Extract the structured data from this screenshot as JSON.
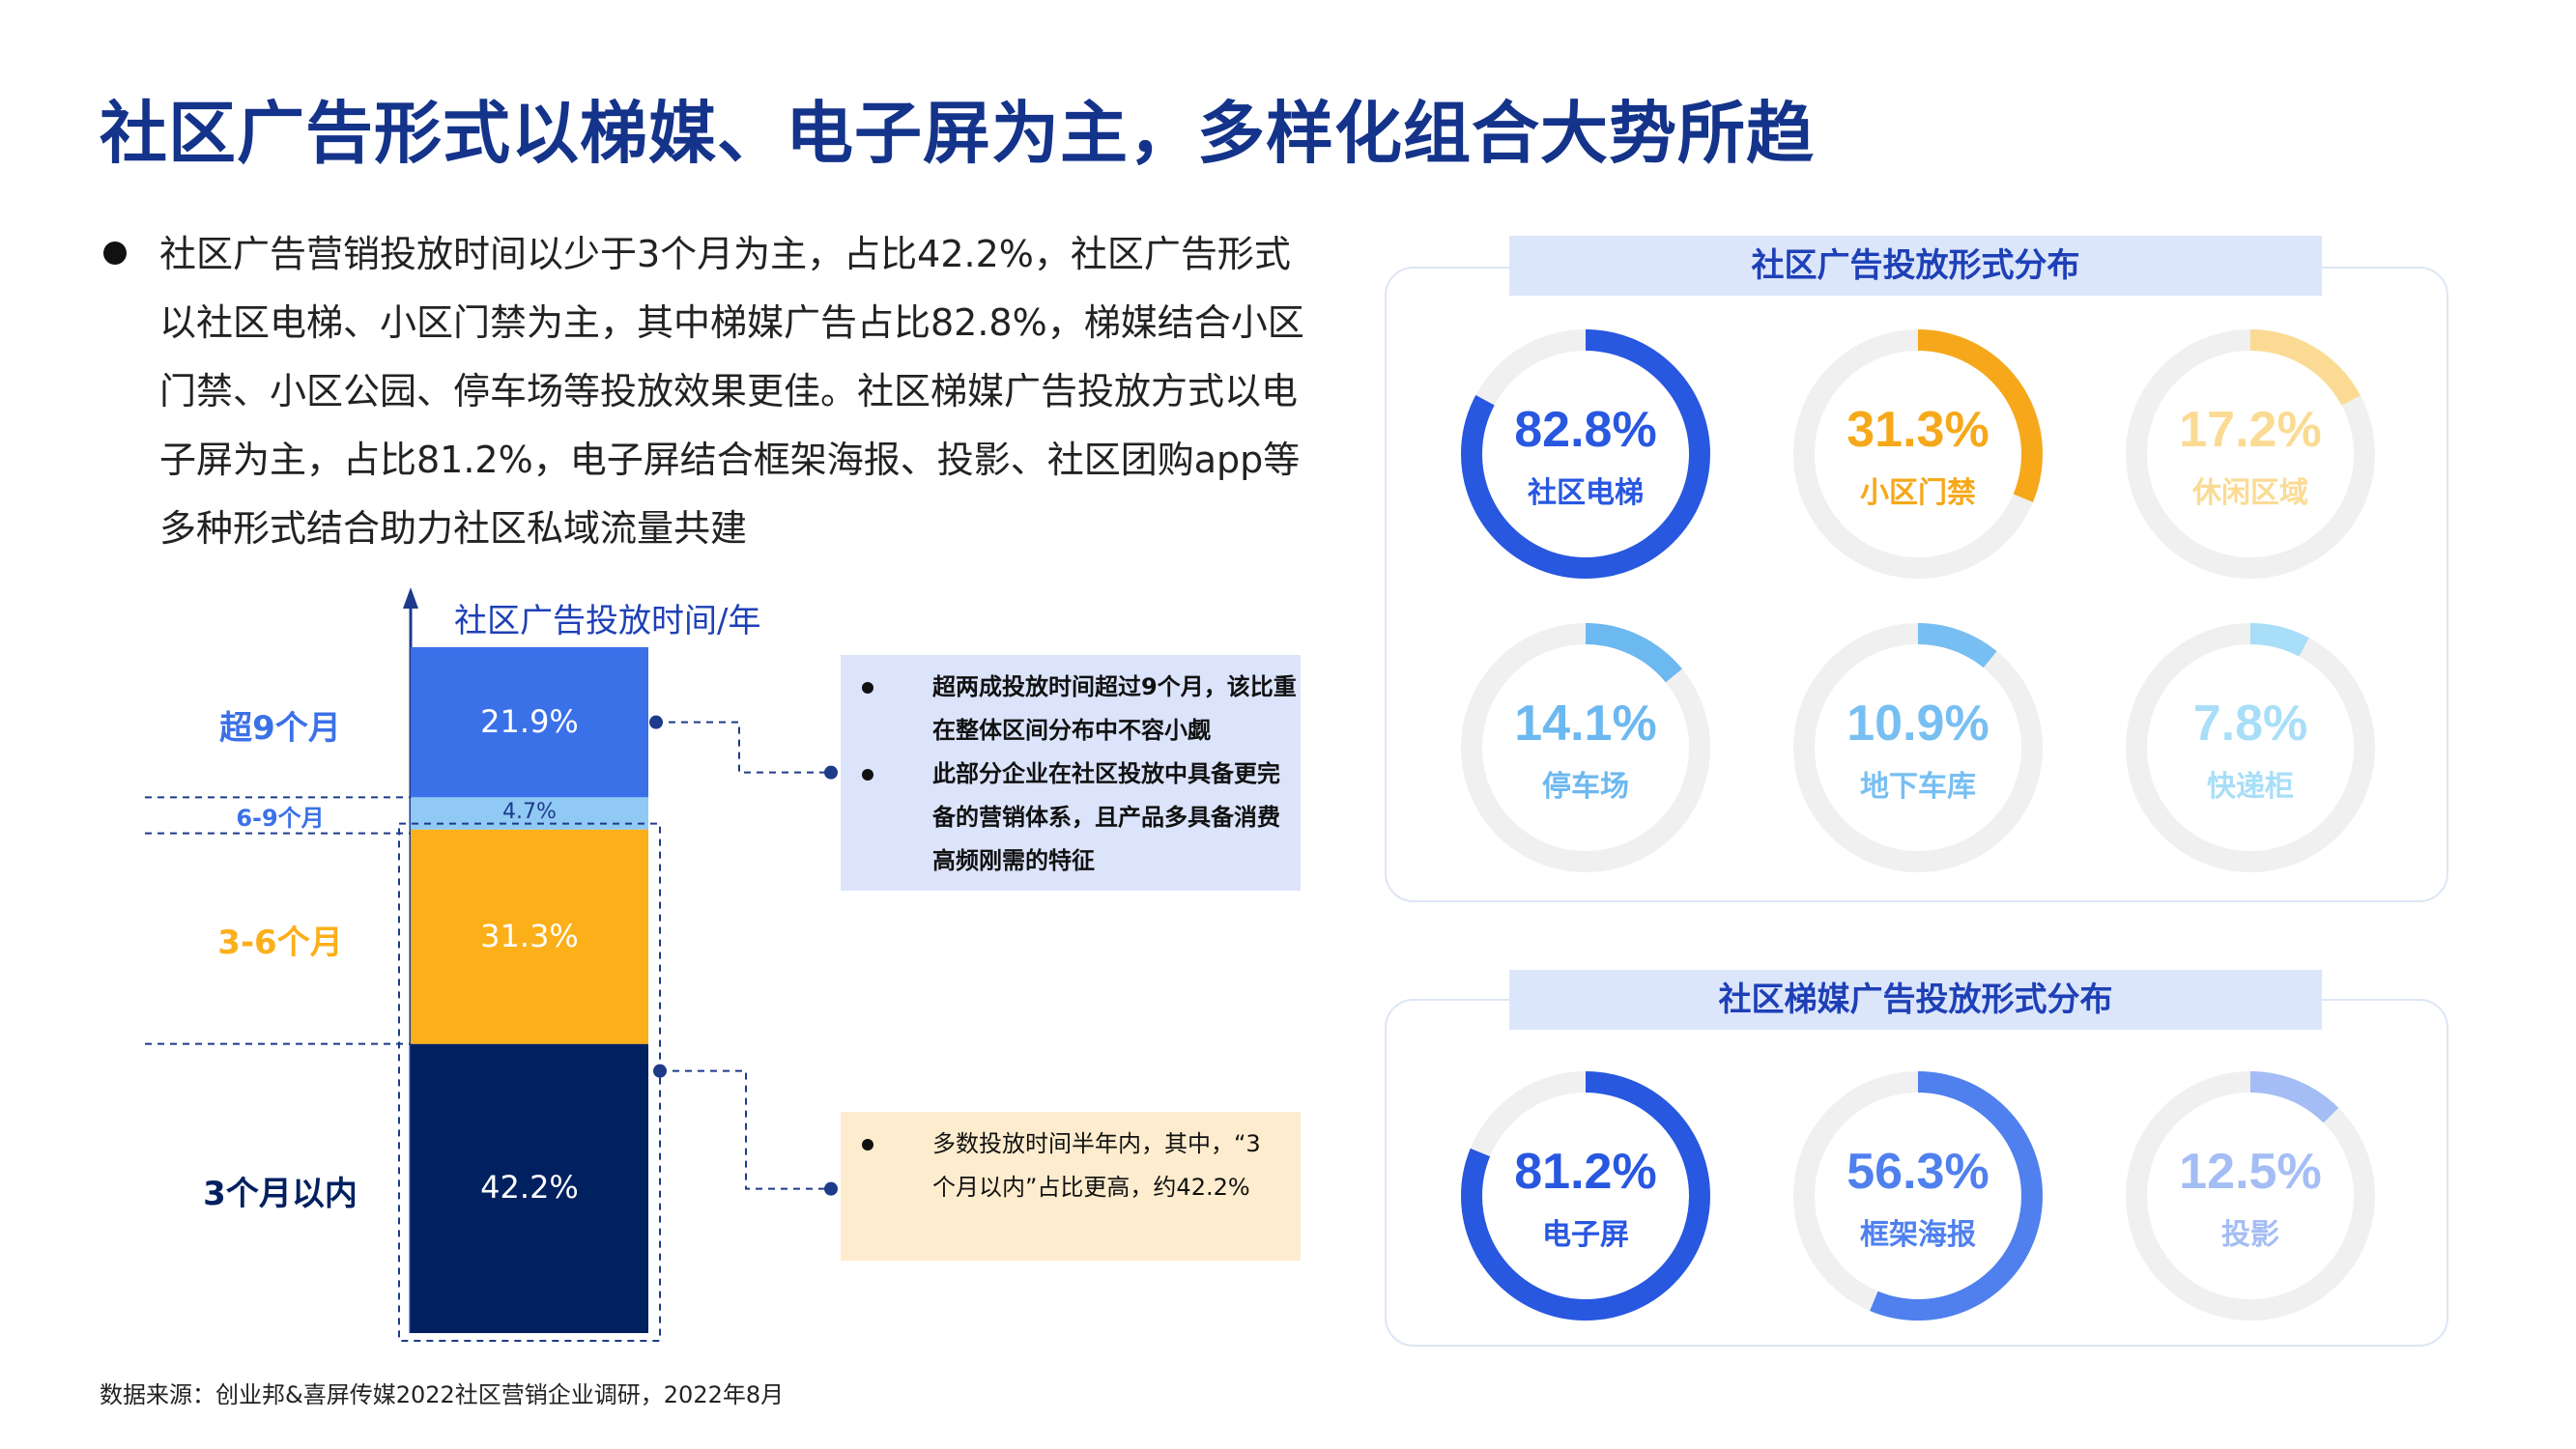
{
  "title": "社区广告形式以梯媒、电子屏为主，多样化组合大势所趋",
  "intro": "社区广告营销投放时间以少于3个月为主，占比42.2%，社区广告形式以社区电梯、小区门禁为主，其中梯媒广告占比82.8%，梯媒结合小区门禁、小区公园、停车场等投放效果更佳。社区梯媒广告投放方式以电子屏为主，占比81.2%，电子屏结合框架海报、投影、社区团购app等多种形式结合助力社区私域流量共建",
  "footer": "数据来源：创业邦&喜屏传媒2022社区营销企业调研，2022年8月",
  "colors": {
    "blue_dark": "#002060",
    "blue": "#3b71e8",
    "blue_light": "#90caf4",
    "orange": "#fbaf19"
  },
  "chart_data": [
    {
      "type": "bar",
      "stacked": true,
      "title": "社区广告投放时间/年",
      "categories": [
        "3个月以内",
        "3-6个月",
        "6-9个月",
        "超9个月"
      ],
      "values": [
        42.2,
        31.3,
        4.7,
        21.9
      ],
      "value_labels": [
        "42.2%",
        "31.3%",
        "4.7%",
        "21.9%"
      ],
      "colors": [
        "#002060",
        "#fbaf19",
        "#90caf4",
        "#3b71e8"
      ],
      "label_colors": [
        "#002060",
        "#fbaf19",
        "#3b71e8",
        "#3b71e8"
      ]
    },
    {
      "type": "pie",
      "title": "社区广告投放形式分布",
      "items": [
        {
          "label": "社区电梯",
          "value": 82.8,
          "text": "82.8%",
          "color": "#2857e0"
        },
        {
          "label": "小区门禁",
          "value": 31.3,
          "text": "31.3%",
          "color": "#f6a81a"
        },
        {
          "label": "休闲区域",
          "value": 17.2,
          "text": "17.2%",
          "color": "#fbdb93"
        },
        {
          "label": "停车场",
          "value": 14.1,
          "text": "14.1%",
          "color": "#6cb8f0"
        },
        {
          "label": "地下车库",
          "value": 10.9,
          "text": "10.9%",
          "color": "#77bff2"
        },
        {
          "label": "快递柜",
          "value": 7.8,
          "text": "7.8%",
          "color": "#a8def8"
        }
      ]
    },
    {
      "type": "pie",
      "title": "社区梯媒广告投放形式分布",
      "items": [
        {
          "label": "电子屏",
          "value": 81.2,
          "text": "81.2%",
          "color": "#2857e0"
        },
        {
          "label": "框架海报",
          "value": 56.3,
          "text": "56.3%",
          "color": "#4f80ee"
        },
        {
          "label": "投影",
          "value": 12.5,
          "text": "12.5%",
          "color": "#a4bdf4"
        }
      ]
    }
  ],
  "callouts": {
    "top": [
      "超两成投放时间超过9个月，该比重在整体区间分布中不容小觑",
      "此部分企业在社区投放中具备更完备的营销体系，且产品多具备消费高频刚需的特征"
    ],
    "bottom": [
      "多数投放时间半年内，其中，“3个月以内”占比更高，约42.2%"
    ]
  }
}
